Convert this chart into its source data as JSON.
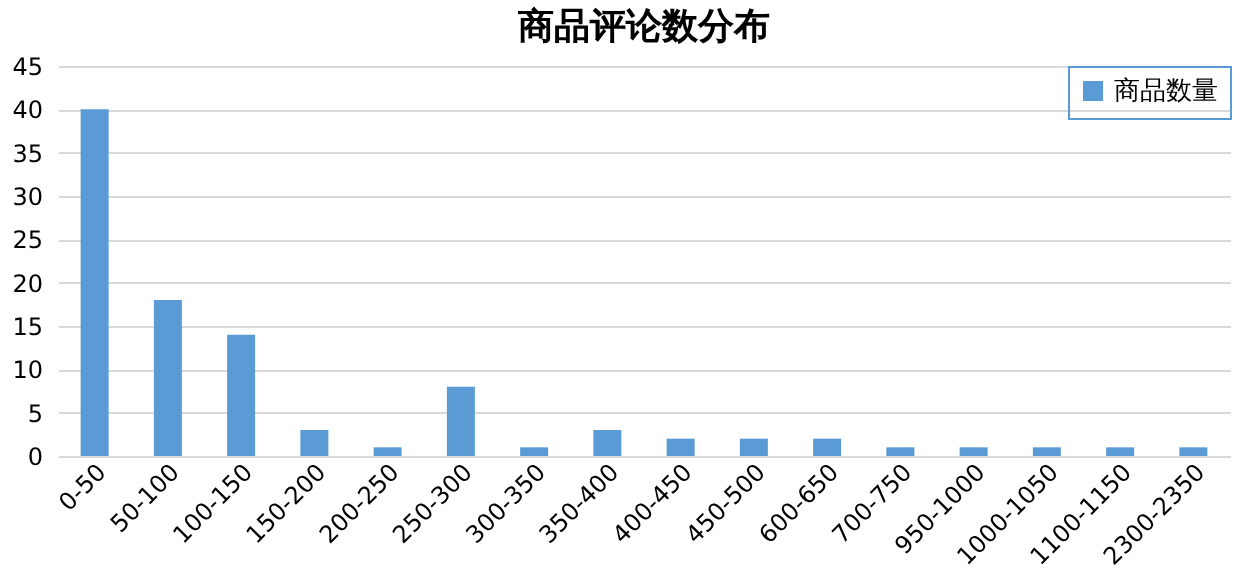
{
  "chart_data": {
    "type": "bar",
    "title": "商品评论数分布",
    "categories": [
      "0-50",
      "50-100",
      "100-150",
      "150-200",
      "200-250",
      "250-300",
      "300-350",
      "350-400",
      "400-450",
      "450-500",
      "600-650",
      "700-750",
      "950-1000",
      "1000-1050",
      "1100-1150",
      "2300-2350"
    ],
    "series": [
      {
        "name": "商品数量",
        "color": "#5b9bd5",
        "values": [
          40,
          18,
          14,
          3,
          1,
          8,
          1,
          3,
          2,
          2,
          2,
          1,
          1,
          1,
          1,
          1
        ]
      }
    ],
    "ylim": [
      0,
      45
    ],
    "yticks": [
      0,
      5,
      10,
      15,
      20,
      25,
      30,
      35,
      40,
      45
    ],
    "grid": "y",
    "legend": "top right"
  }
}
